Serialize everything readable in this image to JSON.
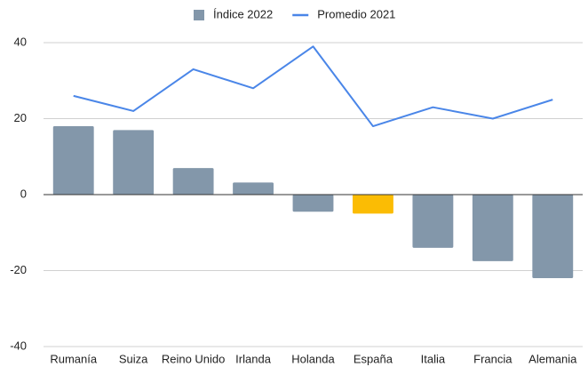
{
  "chart_data": {
    "type": "bar",
    "categories": [
      "Rumanía",
      "Suiza",
      "Reino Unido",
      "Irlanda",
      "Holanda",
      "España",
      "Italia",
      "Francia",
      "Alemania"
    ],
    "series": [
      {
        "name": "Índice 2022",
        "type": "bar",
        "color": "#8397aa",
        "colors": [
          "#8397aa",
          "#8397aa",
          "#8397aa",
          "#8397aa",
          "#8397aa",
          "#fbbc04",
          "#8397aa",
          "#8397aa",
          "#8397aa"
        ],
        "values": [
          18,
          17,
          7,
          3.2,
          -4.5,
          -5,
          -14,
          -17.5,
          -22
        ]
      },
      {
        "name": "Promedio 2021",
        "type": "line",
        "color": "#4a86e8",
        "values": [
          26,
          22,
          33,
          28,
          39,
          18,
          23,
          20,
          25
        ]
      }
    ],
    "ylim": [
      -40,
      40
    ],
    "yticks": [
      -40,
      -20,
      0,
      20,
      40
    ],
    "grid": true,
    "legend": "top"
  }
}
